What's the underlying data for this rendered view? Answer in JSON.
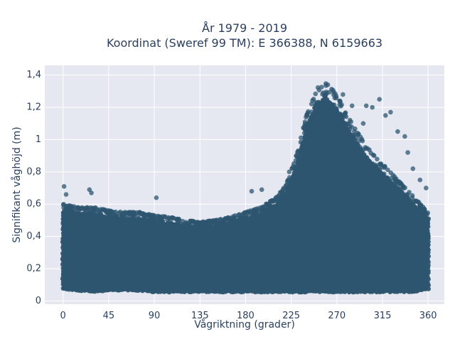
{
  "chart_data": {
    "type": "scatter",
    "title": [
      "År 1979 - 2019",
      "Koordinat (Sweref 99 TM): E 366388, N 6159663"
    ],
    "xlabel": "Vågriktning (grader)",
    "ylabel": "Signifikant våghöjd (m)",
    "xlim": [
      -18,
      376
    ],
    "ylim": [
      -0.02,
      1.46
    ],
    "x_ticks": [
      0,
      45,
      90,
      135,
      180,
      225,
      270,
      315,
      360
    ],
    "x_tick_labels": [
      "0",
      "45",
      "90",
      "135",
      "180",
      "225",
      "270",
      "315",
      "360"
    ],
    "y_ticks": [
      0,
      0.2,
      0.4,
      0.6,
      0.8,
      1.0,
      1.2,
      1.4
    ],
    "y_tick_labels": [
      "0",
      "0,2",
      "0,4",
      "0,6",
      "0,8",
      "1",
      "1,2",
      "1,4"
    ],
    "grid": true,
    "marker_color": "#2e5570",
    "plot_bg": "#e5e8f0",
    "envelope": {
      "direction": [
        0,
        15,
        30,
        45,
        60,
        75,
        90,
        105,
        120,
        135,
        150,
        165,
        180,
        195,
        210,
        220,
        230,
        240,
        250,
        260,
        270,
        280,
        290,
        300,
        315,
        330,
        345,
        360
      ],
      "max_height": [
        0.6,
        0.58,
        0.58,
        0.56,
        0.55,
        0.55,
        0.53,
        0.52,
        0.5,
        0.49,
        0.5,
        0.52,
        0.55,
        0.58,
        0.64,
        0.72,
        0.9,
        1.15,
        1.32,
        1.35,
        1.28,
        1.15,
        1.05,
        0.95,
        0.85,
        0.75,
        0.65,
        0.55
      ],
      "min_height": [
        0.08,
        0.07,
        0.06,
        0.07,
        0.07,
        0.07,
        0.06,
        0.06,
        0.06,
        0.06,
        0.06,
        0.06,
        0.06,
        0.06,
        0.06,
        0.06,
        0.06,
        0.06,
        0.06,
        0.06,
        0.06,
        0.06,
        0.06,
        0.06,
        0.06,
        0.06,
        0.06,
        0.08
      ]
    },
    "outliers": [
      {
        "x": 1,
        "y": 0.71
      },
      {
        "x": 3,
        "y": 0.66
      },
      {
        "x": 26,
        "y": 0.69
      },
      {
        "x": 28,
        "y": 0.67
      },
      {
        "x": 92,
        "y": 0.64
      },
      {
        "x": 186,
        "y": 0.68
      },
      {
        "x": 196,
        "y": 0.69
      },
      {
        "x": 223,
        "y": 0.8
      },
      {
        "x": 299,
        "y": 1.21
      },
      {
        "x": 305,
        "y": 1.2
      },
      {
        "x": 312,
        "y": 1.25
      },
      {
        "x": 318,
        "y": 1.15
      },
      {
        "x": 323,
        "y": 1.17
      },
      {
        "x": 330,
        "y": 1.05
      },
      {
        "x": 337,
        "y": 1.02
      },
      {
        "x": 340,
        "y": 0.92
      },
      {
        "x": 345,
        "y": 0.82
      },
      {
        "x": 352,
        "y": 0.75
      },
      {
        "x": 358,
        "y": 0.7
      },
      {
        "x": 296,
        "y": 1.1
      },
      {
        "x": 285,
        "y": 1.21
      },
      {
        "x": 276,
        "y": 1.28
      }
    ]
  }
}
